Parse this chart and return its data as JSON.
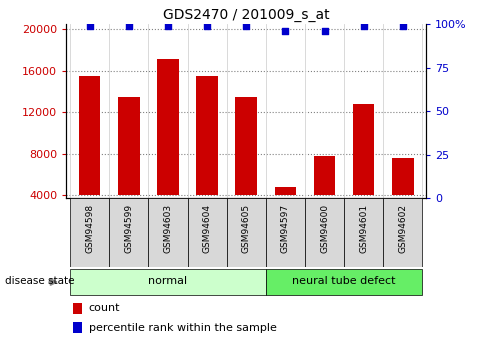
{
  "title": "GDS2470 / 201009_s_at",
  "samples": [
    "GSM94598",
    "GSM94599",
    "GSM94603",
    "GSM94604",
    "GSM94605",
    "GSM94597",
    "GSM94600",
    "GSM94601",
    "GSM94602"
  ],
  "counts": [
    15500,
    13500,
    17100,
    15500,
    13500,
    4800,
    7800,
    12800,
    7600
  ],
  "percentiles": [
    99,
    99,
    99,
    99,
    99,
    96,
    96,
    99,
    99
  ],
  "bar_color": "#cc0000",
  "dot_color": "#0000cc",
  "ylim_left": [
    3700,
    20500
  ],
  "ylim_right": [
    0,
    100
  ],
  "yticks_left": [
    4000,
    8000,
    12000,
    16000,
    20000
  ],
  "ytick_labels_left": [
    "4000",
    "8000",
    "12000",
    "16000",
    "20000"
  ],
  "yticks_right": [
    0,
    25,
    50,
    75,
    100
  ],
  "ytick_labels_right": [
    "0",
    "25",
    "50",
    "75",
    "100%"
  ],
  "groups": [
    {
      "label": "normal",
      "start": 0,
      "end": 5,
      "color": "#ccffcc"
    },
    {
      "label": "neural tube defect",
      "start": 5,
      "end": 9,
      "color": "#66ee66"
    }
  ],
  "disease_state_label": "disease state",
  "legend_count_label": "count",
  "legend_percentile_label": "percentile rank within the sample",
  "bar_width": 0.55,
  "tick_fontsize": 8,
  "title_fontsize": 10,
  "group_fontsize": 8,
  "legend_fontsize": 8
}
